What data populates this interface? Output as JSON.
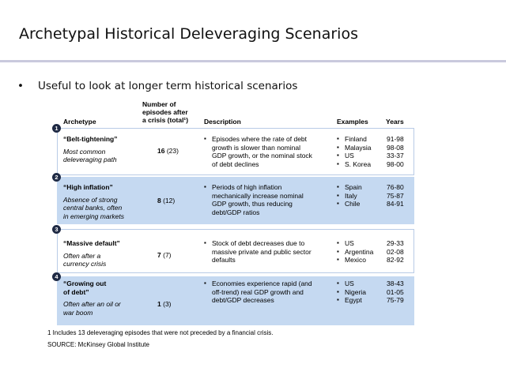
{
  "title": "Archetypal Historical Deleveraging Scenarios",
  "bullet": {
    "text": "Useful to look at longer term historical scenarios"
  },
  "table": {
    "headers": {
      "archetype": "Archetype",
      "episodes_l1": "Number of",
      "episodes_l2": "episodes after",
      "episodes_l3": "a crisis (total¹)",
      "description": "Description",
      "examples": "Examples",
      "years": "Years"
    },
    "rows": [
      {
        "num": "1",
        "name_l1": "“Belt-tightening”",
        "name_l2": "",
        "sub_l1": "Most common",
        "sub_l2": "deleveraging path",
        "sub_l3": "",
        "count_bold": "16",
        "count_total": "(23)",
        "desc": [
          "Episodes where the rate of debt",
          "growth is slower than nominal",
          "GDP growth, or the nominal stock",
          "of debt declines"
        ],
        "examples": [
          "Finland",
          "Malaysia",
          "US",
          "S. Korea"
        ],
        "years": [
          "91-98",
          "98-08",
          "33-37",
          "98-00"
        ]
      },
      {
        "num": "2",
        "name_l1": "“High inflation”",
        "name_l2": "",
        "sub_l1": "Absence of strong",
        "sub_l2": "central banks, often",
        "sub_l3": "in emerging markets",
        "count_bold": "8",
        "count_total": "(12)",
        "desc": [
          "Periods of high inflation",
          "mechanically increase nominal",
          "GDP growth, thus reducing",
          "debt/GDP ratios"
        ],
        "examples": [
          "Spain",
          "Italy",
          "Chile"
        ],
        "years": [
          "76-80",
          "75-87",
          "84-91"
        ]
      },
      {
        "num": "3",
        "name_l1": "“Massive default”",
        "name_l2": "",
        "sub_l1": "Often after a",
        "sub_l2": "currency crisis",
        "sub_l3": "",
        "count_bold": "7",
        "count_total": "(7)",
        "desc": [
          "Stock of debt decreases due to",
          "massive private and public sector",
          "defaults"
        ],
        "examples": [
          "US",
          "Argentina",
          "Mexico"
        ],
        "years": [
          "29-33",
          "02-08",
          "82-92"
        ]
      },
      {
        "num": "4",
        "name_l1": "“Growing out",
        "name_l2": "of debt”",
        "sub_l1": "Often after an oil or",
        "sub_l2": "war boom",
        "sub_l3": "",
        "count_bold": "1",
        "count_total": "(3)",
        "desc": [
          "Economies experience rapid (and",
          "off-trend) real GDP growth and",
          "debt/GDP decreases"
        ],
        "examples": [
          "US",
          "Nigeria",
          "Egypt"
        ],
        "years": [
          "38-43",
          "01-05",
          "75-79"
        ]
      }
    ],
    "footnote": "1 Includes 13 deleveraging episodes that were not preceded by a financial crisis.",
    "source": "SOURCE: McKinsey Global Institute"
  }
}
